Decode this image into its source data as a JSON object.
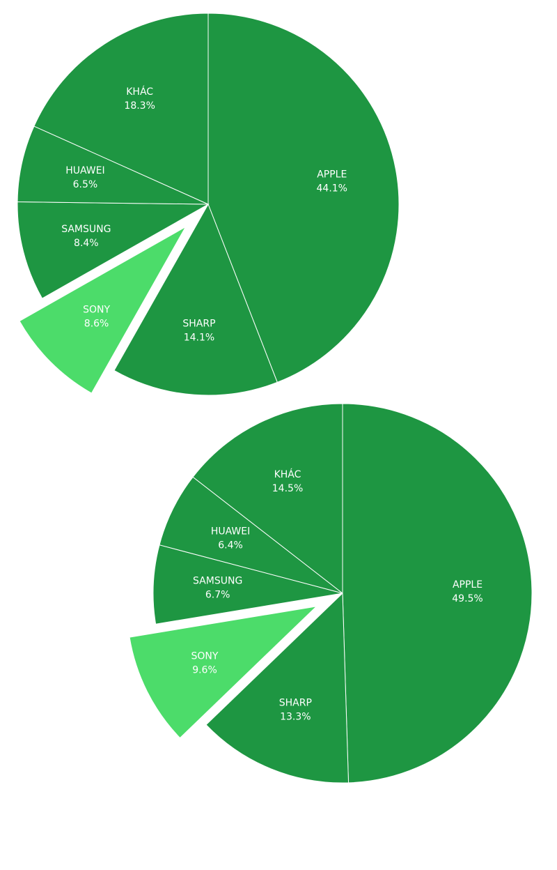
{
  "colors": {
    "slice": "#1e9642",
    "highlight": "#4cdc6a",
    "divider": "#ffffff",
    "label": "#ffffff"
  },
  "chart_data": [
    {
      "type": "pie",
      "highlighted": "SONY",
      "slices": [
        {
          "label": "APPLE",
          "value": 44.1,
          "value_text": "44.1%"
        },
        {
          "label": "SHARP",
          "value": 14.1,
          "value_text": "14.1%"
        },
        {
          "label": "SONY",
          "value": 8.6,
          "value_text": "8.6%"
        },
        {
          "label": "SAMSUNG",
          "value": 8.4,
          "value_text": "8.4%"
        },
        {
          "label": "HUAWEI",
          "value": 6.5,
          "value_text": "6.5%"
        },
        {
          "label": "KHÁC",
          "value": 18.3,
          "value_text": "18.3%"
        }
      ]
    },
    {
      "type": "pie",
      "highlighted": "SONY",
      "slices": [
        {
          "label": "APPLE",
          "value": 49.5,
          "value_text": "49.5%"
        },
        {
          "label": "SHARP",
          "value": 13.3,
          "value_text": "13.3%"
        },
        {
          "label": "SONY",
          "value": 9.6,
          "value_text": "9.6%"
        },
        {
          "label": "SAMSUNG",
          "value": 6.7,
          "value_text": "6.7%"
        },
        {
          "label": "HUAWEI",
          "value": 6.4,
          "value_text": "6.4%"
        },
        {
          "label": "KHÁC",
          "value": 14.5,
          "value_text": "14.5%"
        }
      ]
    }
  ]
}
